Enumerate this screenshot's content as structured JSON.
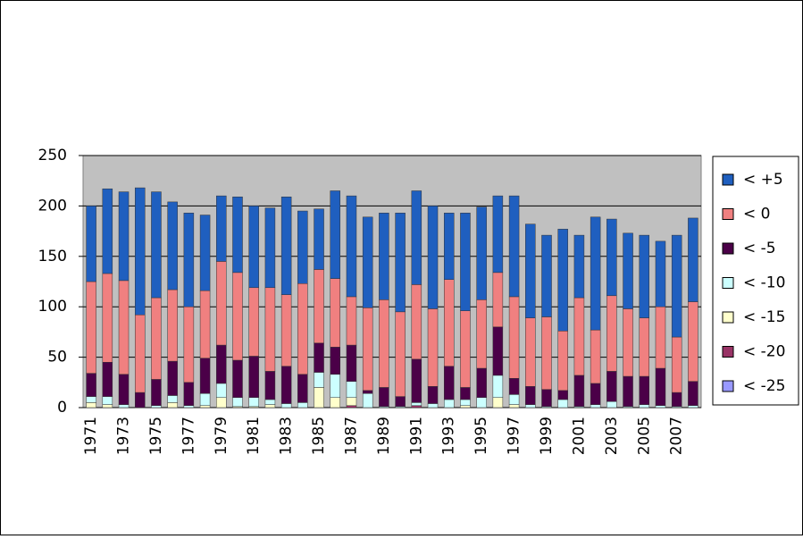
{
  "chart_data": {
    "type": "stacked_bar",
    "categories": [
      "1971",
      null,
      "1973",
      null,
      "1975",
      null,
      "1977",
      null,
      "1979",
      null,
      "1981",
      null,
      "1983",
      null,
      "1985",
      null,
      "1987",
      null,
      "1989",
      null,
      "1991",
      null,
      "1993",
      null,
      "1995",
      null,
      "1997",
      null,
      "1999",
      null,
      "2001",
      null,
      "2003",
      null,
      "2005",
      null,
      "2007",
      null
    ],
    "series": [
      {
        "name": "< -25",
        "color": "#9999ff",
        "values": [
          0,
          0,
          0,
          0,
          0,
          0,
          0,
          0,
          0,
          0,
          0,
          0,
          0,
          0,
          0,
          0,
          0,
          0,
          0,
          0,
          0,
          0,
          0,
          0,
          0,
          0,
          0,
          0,
          0,
          0,
          0,
          0,
          0,
          0,
          0,
          0,
          0,
          0
        ]
      },
      {
        "name": "< -20",
        "color": "#993366",
        "values": [
          0,
          0,
          0,
          0,
          0,
          0,
          0,
          0,
          0,
          0,
          0,
          0,
          0,
          0,
          0,
          0,
          2,
          0,
          0,
          0,
          2,
          0,
          0,
          0,
          0,
          0,
          0,
          0,
          0,
          0,
          0,
          0,
          0,
          0,
          0,
          0,
          0,
          0
        ]
      },
      {
        "name": "< -15",
        "color": "#ffffcc",
        "values": [
          5,
          3,
          0,
          0,
          0,
          5,
          0,
          2,
          10,
          1,
          1,
          3,
          0,
          0,
          20,
          10,
          8,
          0,
          0,
          0,
          0,
          0,
          0,
          2,
          0,
          10,
          3,
          0,
          0,
          0,
          0,
          0,
          0,
          0,
          0,
          0,
          0,
          0
        ]
      },
      {
        "name": "< -10",
        "color": "#ccffff",
        "values": [
          6,
          8,
          3,
          0,
          2,
          7,
          2,
          12,
          14,
          9,
          9,
          5,
          4,
          5,
          15,
          23,
          16,
          14,
          1,
          1,
          3,
          4,
          8,
          6,
          10,
          22,
          10,
          3,
          1,
          8,
          1,
          3,
          6,
          1,
          3,
          2,
          1,
          2
        ]
      },
      {
        "name": "< -5",
        "color": "#4b0048",
        "values": [
          23,
          34,
          30,
          15,
          26,
          34,
          23,
          35,
          38,
          37,
          41,
          28,
          37,
          28,
          29,
          27,
          36,
          3,
          19,
          10,
          43,
          17,
          33,
          12,
          29,
          48,
          16,
          18,
          17,
          9,
          31,
          21,
          30,
          30,
          28,
          37,
          14,
          24
        ]
      },
      {
        "name": "< 0",
        "color": "#f08080",
        "values": [
          91,
          88,
          93,
          77,
          81,
          71,
          75,
          67,
          83,
          87,
          68,
          83,
          71,
          90,
          73,
          68,
          48,
          82,
          87,
          84,
          74,
          77,
          86,
          76,
          68,
          54,
          81,
          68,
          72,
          59,
          77,
          53,
          75,
          67,
          58,
          61,
          55,
          79
        ]
      },
      {
        "name": "< +5",
        "color": "#1f5fbf",
        "values": [
          75,
          84,
          88,
          126,
          105,
          87,
          93,
          75,
          65,
          75,
          81,
          79,
          97,
          72,
          60,
          87,
          100,
          90,
          86,
          98,
          93,
          102,
          66,
          97,
          92,
          76,
          100,
          93,
          81,
          101,
          62,
          112,
          76,
          75,
          82,
          65,
          101,
          83
        ]
      }
    ],
    "ylim": [
      0,
      250
    ],
    "yticks": [
      0,
      50,
      100,
      150,
      200,
      250
    ],
    "grid": true,
    "legend": "right",
    "plot_background": "#c0c0c0"
  }
}
